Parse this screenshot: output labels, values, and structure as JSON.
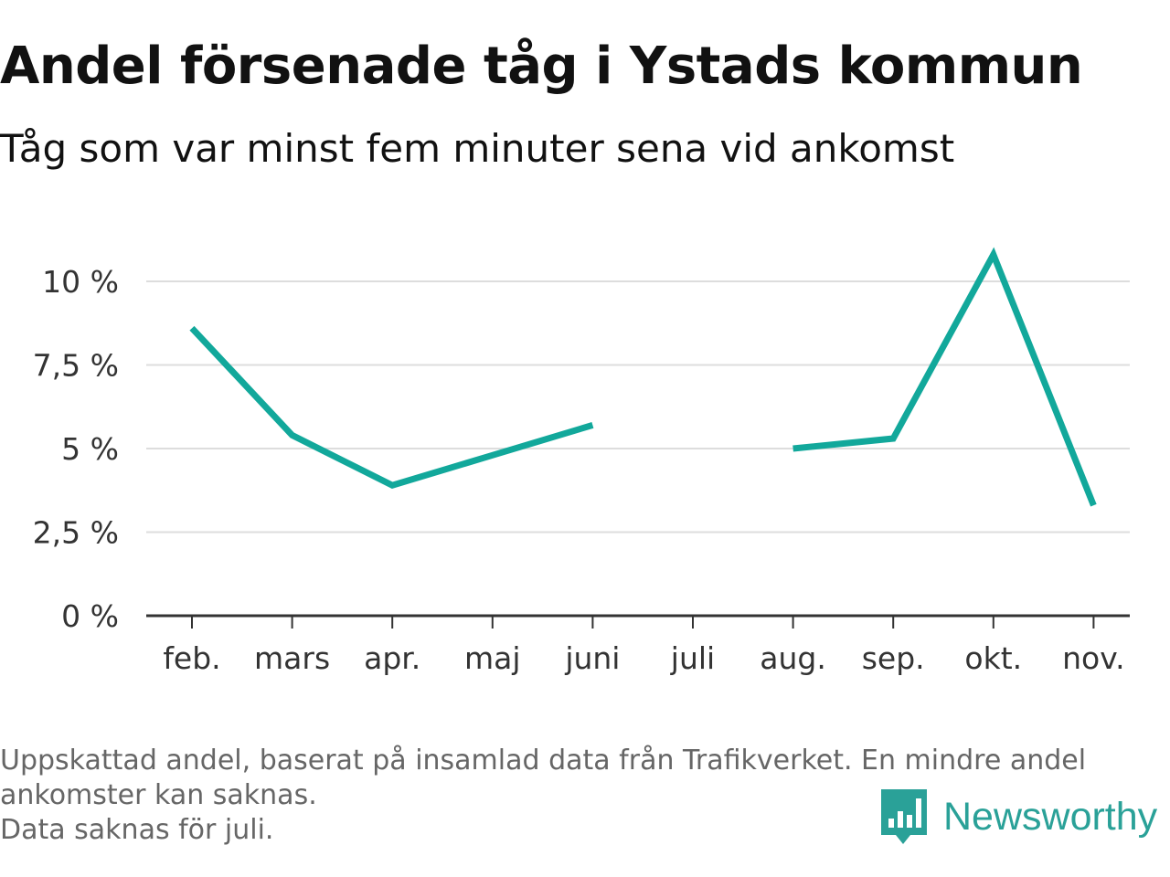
{
  "header": {
    "title": "Andel försenade tåg i Ystads kommun",
    "subtitle": "Tåg som var minst fem minuter sena vid ankomst"
  },
  "footnote": {
    "line1": "Uppskattad andel, baserat på insamlad data från Trafikverket. En mindre andel",
    "line2": "ankomster kan saknas.",
    "line3": "Data saknas för juli."
  },
  "brand": {
    "name": "Newsworthy",
    "icon": "newsworthy-logo-icon",
    "color": "#2aa198"
  },
  "chart_data": {
    "type": "line",
    "categories": [
      "feb.",
      "mars",
      "apr.",
      "maj",
      "juni",
      "juli",
      "aug.",
      "sep.",
      "okt.",
      "nov."
    ],
    "series": [
      {
        "values": [
          8.6,
          5.4,
          3.9,
          4.8,
          5.7,
          null,
          5.0,
          5.3,
          10.8,
          3.3
        ]
      }
    ],
    "ylim": [
      0,
      11
    ],
    "yticks": [
      0,
      2.5,
      5,
      7.5,
      10
    ],
    "ytick_labels": [
      "0 %",
      "2,5 %",
      "5 %",
      "7,5 %",
      "10 %"
    ],
    "line_color": "#12a89b",
    "grid": true,
    "xlabel": "",
    "ylabel": ""
  }
}
